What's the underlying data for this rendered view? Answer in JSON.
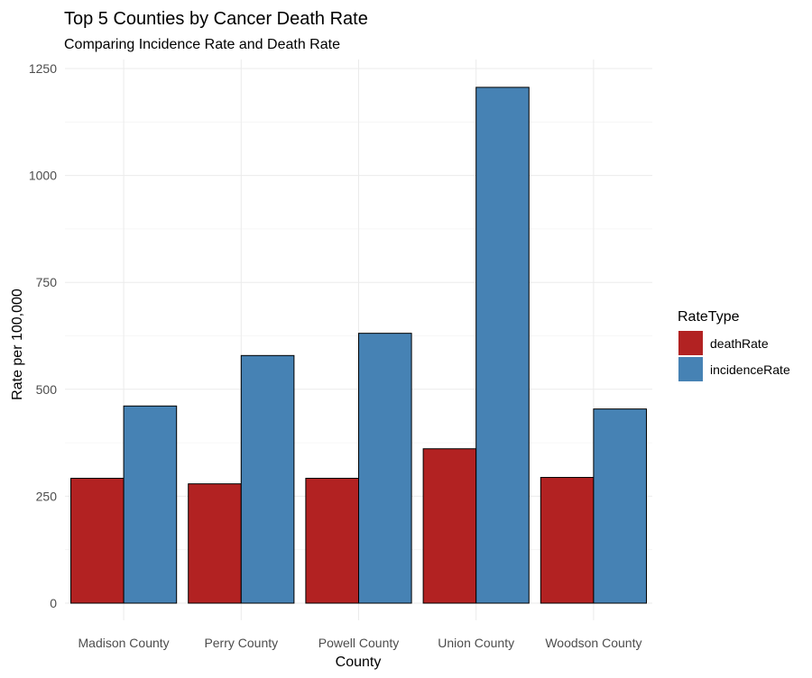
{
  "chart_data": {
    "type": "bar",
    "title": "Top 5 Counties by Cancer Death Rate",
    "subtitle": "Comparing Incidence Rate and Death Rate",
    "xlabel": "County",
    "ylabel": "Rate per 100,000",
    "categories": [
      "Madison County",
      "Perry County",
      "Powell County",
      "Union County",
      "Woodson County"
    ],
    "series": [
      {
        "name": "deathRate",
        "color": "#b22222",
        "values": [
          292,
          279,
          292,
          361,
          294
        ]
      },
      {
        "name": "incidenceRate",
        "color": "#4682b4",
        "values": [
          461,
          579,
          631,
          1206,
          454
        ]
      }
    ],
    "ylim": [
      0,
      1250
    ],
    "yticks": [
      0,
      250,
      500,
      750,
      1000,
      1250
    ],
    "grid": true,
    "legend": {
      "title": "RateType",
      "position": "right"
    }
  }
}
